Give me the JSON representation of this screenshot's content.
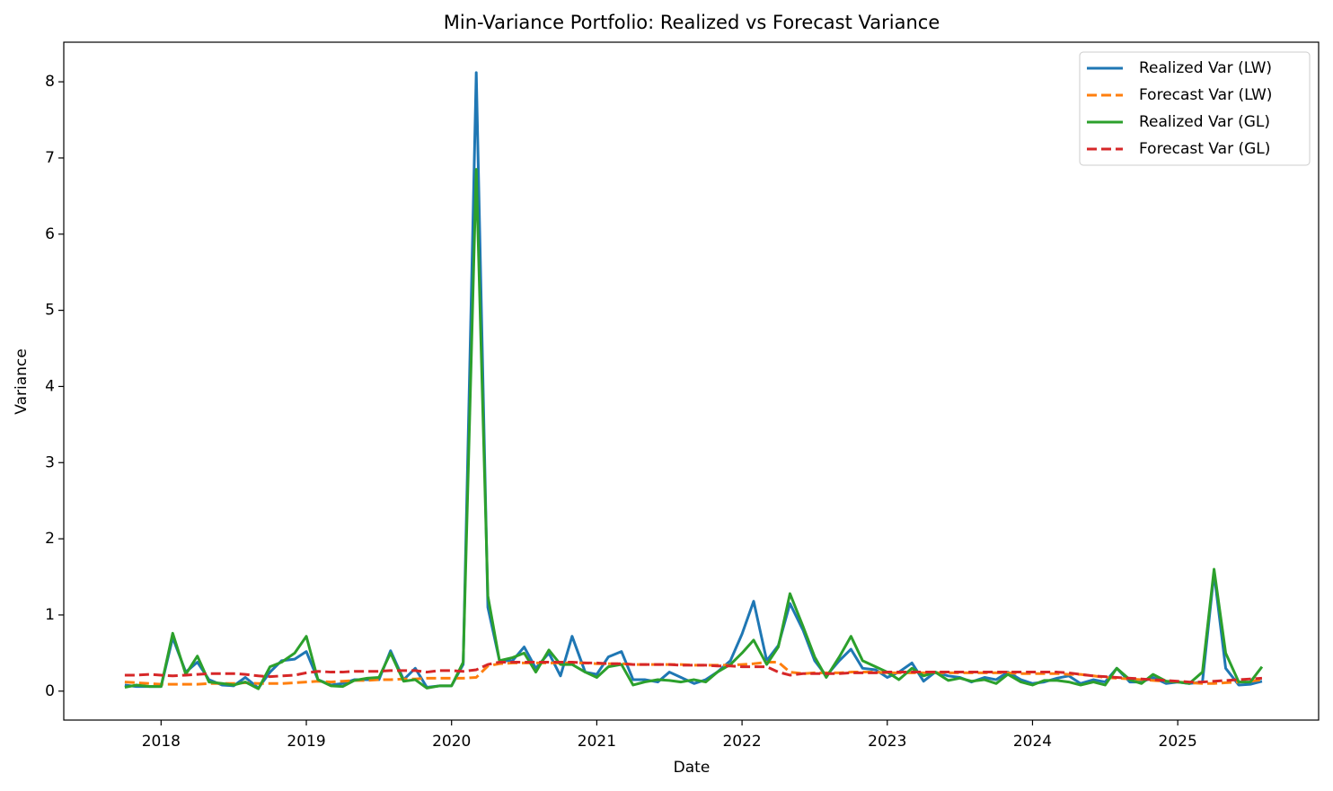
{
  "chart_data": {
    "type": "line",
    "title": "Min-Variance Portfolio: Realized vs Forecast Variance",
    "xlabel": "Date",
    "ylabel": "Variance",
    "x": [
      2017.75,
      2017.83,
      2017.92,
      2018,
      2018.08,
      2018.17,
      2018.25,
      2018.33,
      2018.42,
      2018.5,
      2018.58,
      2018.67,
      2018.75,
      2018.83,
      2018.92,
      2019,
      2019.08,
      2019.17,
      2019.25,
      2019.33,
      2019.42,
      2019.5,
      2019.58,
      2019.67,
      2019.75,
      2019.83,
      2019.92,
      2020,
      2020.08,
      2020.17,
      2020.25,
      2020.33,
      2020.42,
      2020.5,
      2020.58,
      2020.67,
      2020.75,
      2020.83,
      2020.92,
      2021,
      2021.08,
      2021.17,
      2021.25,
      2021.33,
      2021.42,
      2021.5,
      2021.58,
      2021.67,
      2021.75,
      2021.83,
      2021.92,
      2022,
      2022.08,
      2022.17,
      2022.25,
      2022.33,
      2022.42,
      2022.5,
      2022.58,
      2022.67,
      2022.75,
      2022.83,
      2022.92,
      2023,
      2023.08,
      2023.17,
      2023.25,
      2023.33,
      2023.42,
      2023.5,
      2023.58,
      2023.67,
      2023.75,
      2023.83,
      2023.92,
      2024,
      2024.08,
      2024.17,
      2024.25,
      2024.33,
      2024.42,
      2024.5,
      2024.58,
      2024.67,
      2024.75,
      2024.83,
      2024.92,
      2025,
      2025.08,
      2025.17,
      2025.25,
      2025.33,
      2025.42,
      2025.5,
      2025.58
    ],
    "series": [
      {
        "name": "Realized Var (LW)",
        "color": "#1f77b4",
        "linestyle": "solid",
        "values": [
          0.08,
          0.06,
          0.06,
          0.06,
          0.7,
          0.25,
          0.38,
          0.15,
          0.08,
          0.07,
          0.18,
          0.04,
          0.25,
          0.4,
          0.42,
          0.52,
          0.15,
          0.08,
          0.1,
          0.15,
          0.15,
          0.15,
          0.53,
          0.15,
          0.3,
          0.05,
          0.07,
          0.07,
          0.35,
          8.12,
          1.1,
          0.4,
          0.4,
          0.58,
          0.3,
          0.5,
          0.2,
          0.72,
          0.25,
          0.22,
          0.45,
          0.52,
          0.15,
          0.15,
          0.12,
          0.25,
          0.18,
          0.1,
          0.15,
          0.25,
          0.4,
          0.75,
          1.18,
          0.4,
          0.6,
          1.15,
          0.8,
          0.4,
          0.2,
          0.4,
          0.55,
          0.3,
          0.28,
          0.18,
          0.25,
          0.37,
          0.13,
          0.25,
          0.2,
          0.18,
          0.12,
          0.18,
          0.15,
          0.25,
          0.15,
          0.1,
          0.12,
          0.17,
          0.2,
          0.1,
          0.15,
          0.12,
          0.3,
          0.12,
          0.12,
          0.18,
          0.1,
          0.12,
          0.1,
          0.12,
          1.55,
          0.3,
          0.08,
          0.09,
          0.13
        ]
      },
      {
        "name": "Forecast Var (LW)",
        "color": "#ff7f0e",
        "linestyle": "dashed",
        "values": [
          0.12,
          0.11,
          0.1,
          0.09,
          0.09,
          0.09,
          0.09,
          0.1,
          0.1,
          0.1,
          0.11,
          0.1,
          0.1,
          0.1,
          0.11,
          0.12,
          0.13,
          0.12,
          0.13,
          0.14,
          0.14,
          0.15,
          0.15,
          0.16,
          0.16,
          0.17,
          0.17,
          0.17,
          0.17,
          0.18,
          0.33,
          0.36,
          0.37,
          0.37,
          0.37,
          0.37,
          0.37,
          0.37,
          0.37,
          0.36,
          0.36,
          0.36,
          0.35,
          0.35,
          0.35,
          0.35,
          0.35,
          0.34,
          0.34,
          0.34,
          0.34,
          0.35,
          0.36,
          0.38,
          0.38,
          0.25,
          0.23,
          0.24,
          0.24,
          0.24,
          0.25,
          0.25,
          0.25,
          0.24,
          0.24,
          0.24,
          0.24,
          0.24,
          0.24,
          0.24,
          0.24,
          0.24,
          0.24,
          0.24,
          0.23,
          0.23,
          0.23,
          0.23,
          0.22,
          0.22,
          0.2,
          0.18,
          0.17,
          0.16,
          0.15,
          0.14,
          0.13,
          0.12,
          0.11,
          0.1,
          0.1,
          0.11,
          0.12,
          0.13,
          0.15
        ]
      },
      {
        "name": "Realized Var (GL)",
        "color": "#2ca02c",
        "linestyle": "solid",
        "values": [
          0.05,
          0.08,
          0.06,
          0.06,
          0.76,
          0.22,
          0.46,
          0.12,
          0.1,
          0.08,
          0.12,
          0.03,
          0.32,
          0.38,
          0.5,
          0.72,
          0.15,
          0.07,
          0.06,
          0.14,
          0.17,
          0.18,
          0.5,
          0.13,
          0.15,
          0.04,
          0.07,
          0.07,
          0.38,
          6.85,
          1.25,
          0.4,
          0.44,
          0.5,
          0.25,
          0.54,
          0.35,
          0.35,
          0.25,
          0.18,
          0.32,
          0.35,
          0.08,
          0.12,
          0.15,
          0.14,
          0.12,
          0.15,
          0.12,
          0.25,
          0.35,
          0.5,
          0.67,
          0.35,
          0.58,
          1.28,
          0.85,
          0.45,
          0.18,
          0.45,
          0.72,
          0.4,
          0.32,
          0.25,
          0.15,
          0.3,
          0.2,
          0.25,
          0.14,
          0.17,
          0.13,
          0.15,
          0.1,
          0.22,
          0.12,
          0.08,
          0.14,
          0.14,
          0.12,
          0.08,
          0.12,
          0.08,
          0.3,
          0.15,
          0.1,
          0.22,
          0.13,
          0.12,
          0.1,
          0.25,
          1.6,
          0.5,
          0.12,
          0.12,
          0.32
        ]
      },
      {
        "name": "Forecast Var (GL)",
        "color": "#d62728",
        "linestyle": "dashed",
        "values": [
          0.21,
          0.21,
          0.22,
          0.21,
          0.2,
          0.21,
          0.22,
          0.23,
          0.23,
          0.23,
          0.22,
          0.2,
          0.19,
          0.2,
          0.21,
          0.24,
          0.26,
          0.25,
          0.25,
          0.26,
          0.26,
          0.26,
          0.27,
          0.27,
          0.27,
          0.25,
          0.27,
          0.27,
          0.26,
          0.28,
          0.35,
          0.38,
          0.38,
          0.38,
          0.38,
          0.38,
          0.38,
          0.38,
          0.37,
          0.37,
          0.36,
          0.36,
          0.35,
          0.35,
          0.35,
          0.35,
          0.34,
          0.34,
          0.34,
          0.33,
          0.33,
          0.32,
          0.32,
          0.32,
          0.25,
          0.21,
          0.23,
          0.23,
          0.23,
          0.23,
          0.24,
          0.24,
          0.24,
          0.25,
          0.25,
          0.25,
          0.25,
          0.25,
          0.25,
          0.25,
          0.25,
          0.25,
          0.25,
          0.25,
          0.25,
          0.25,
          0.25,
          0.25,
          0.24,
          0.22,
          0.2,
          0.19,
          0.18,
          0.17,
          0.16,
          0.15,
          0.14,
          0.13,
          0.12,
          0.12,
          0.13,
          0.14,
          0.15,
          0.16,
          0.17
        ]
      }
    ],
    "xlim": [
      2017.33,
      2025.97
    ],
    "xticks": [
      2018,
      2019,
      2020,
      2021,
      2022,
      2023,
      2024,
      2025
    ],
    "ylim": [
      -0.38,
      8.52
    ],
    "yticks": [
      0,
      1,
      2,
      3,
      4,
      5,
      6,
      7,
      8
    ],
    "grid": false,
    "legend": "upper right"
  }
}
